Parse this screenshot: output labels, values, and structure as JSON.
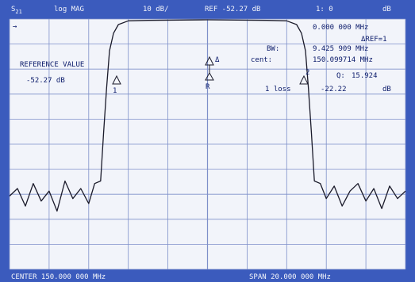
{
  "header": {
    "param_main": "S",
    "param_sub": "21",
    "format": "log MAG",
    "scale": "10 dB/",
    "ref": "REF -52.27 dB",
    "marker_num": "1: 0",
    "unit": "dB"
  },
  "markers": {
    "top_left_symbol": "→",
    "freq_readout": "0.000 000 MHz",
    "ref_mode": "ΔREF=1",
    "bw_label": "BW:",
    "bw_value": "9.425 909 MHz",
    "cent_label": "cent:",
    "cent_value": "150.099714 MHz",
    "q_label": "Q:",
    "q_value": "15.924",
    "loss_label": "1 loss",
    "loss_value": "-22.22",
    "loss_unit": "dB",
    "m_delta": "Δ",
    "m_ref": "R",
    "m_left": "1",
    "m_right": "2"
  },
  "reference_box": {
    "title": "REFERENCE VALUE",
    "value": "-52.27 dB"
  },
  "footer": {
    "center": "CENTER  150.000 000 MHz",
    "span": "SPAN  20.000 000 MHz"
  },
  "colors": {
    "background": "#3b5bbd",
    "screen": "#f2f4fa",
    "grid": "#7e8fc9",
    "trace": "#1a1a2a",
    "text": "#0a1a6a"
  },
  "chart_data": {
    "type": "line",
    "x_center_mhz": 150.0,
    "x_span_mhz": 20.0,
    "xlim": [
      140.0,
      160.0
    ],
    "ylim": [
      -152.27,
      -52.27
    ],
    "grid": true,
    "series": [
      {
        "values": [
          [
            140.0,
            -123
          ],
          [
            140.4,
            -120
          ],
          [
            140.8,
            -127
          ],
          [
            141.2,
            -118
          ],
          [
            141.6,
            -125
          ],
          [
            142.0,
            -121
          ],
          [
            142.4,
            -129
          ],
          [
            142.8,
            -117
          ],
          [
            143.2,
            -124
          ],
          [
            143.6,
            -120
          ],
          [
            144.0,
            -126
          ],
          [
            144.3,
            -118
          ],
          [
            144.6,
            -117
          ],
          [
            144.75,
            -98
          ],
          [
            144.9,
            -80
          ],
          [
            145.05,
            -65
          ],
          [
            145.25,
            -58
          ],
          [
            145.5,
            -54.5
          ],
          [
            146.0,
            -53
          ],
          [
            147.0,
            -52.8
          ],
          [
            150.0,
            -52.6
          ],
          [
            153.0,
            -52.8
          ],
          [
            154.0,
            -53
          ],
          [
            154.5,
            -54.5
          ],
          [
            154.75,
            -58
          ],
          [
            154.95,
            -65
          ],
          [
            155.1,
            -80
          ],
          [
            155.25,
            -98
          ],
          [
            155.4,
            -117
          ],
          [
            155.7,
            -118
          ],
          [
            156.0,
            -124
          ],
          [
            156.4,
            -119
          ],
          [
            156.8,
            -127
          ],
          [
            157.2,
            -121
          ],
          [
            157.6,
            -118
          ],
          [
            158.0,
            -125
          ],
          [
            158.4,
            -120
          ],
          [
            158.8,
            -128
          ],
          [
            159.2,
            -119
          ],
          [
            159.6,
            -124
          ],
          [
            160.0,
            -121
          ]
        ]
      }
    ]
  }
}
